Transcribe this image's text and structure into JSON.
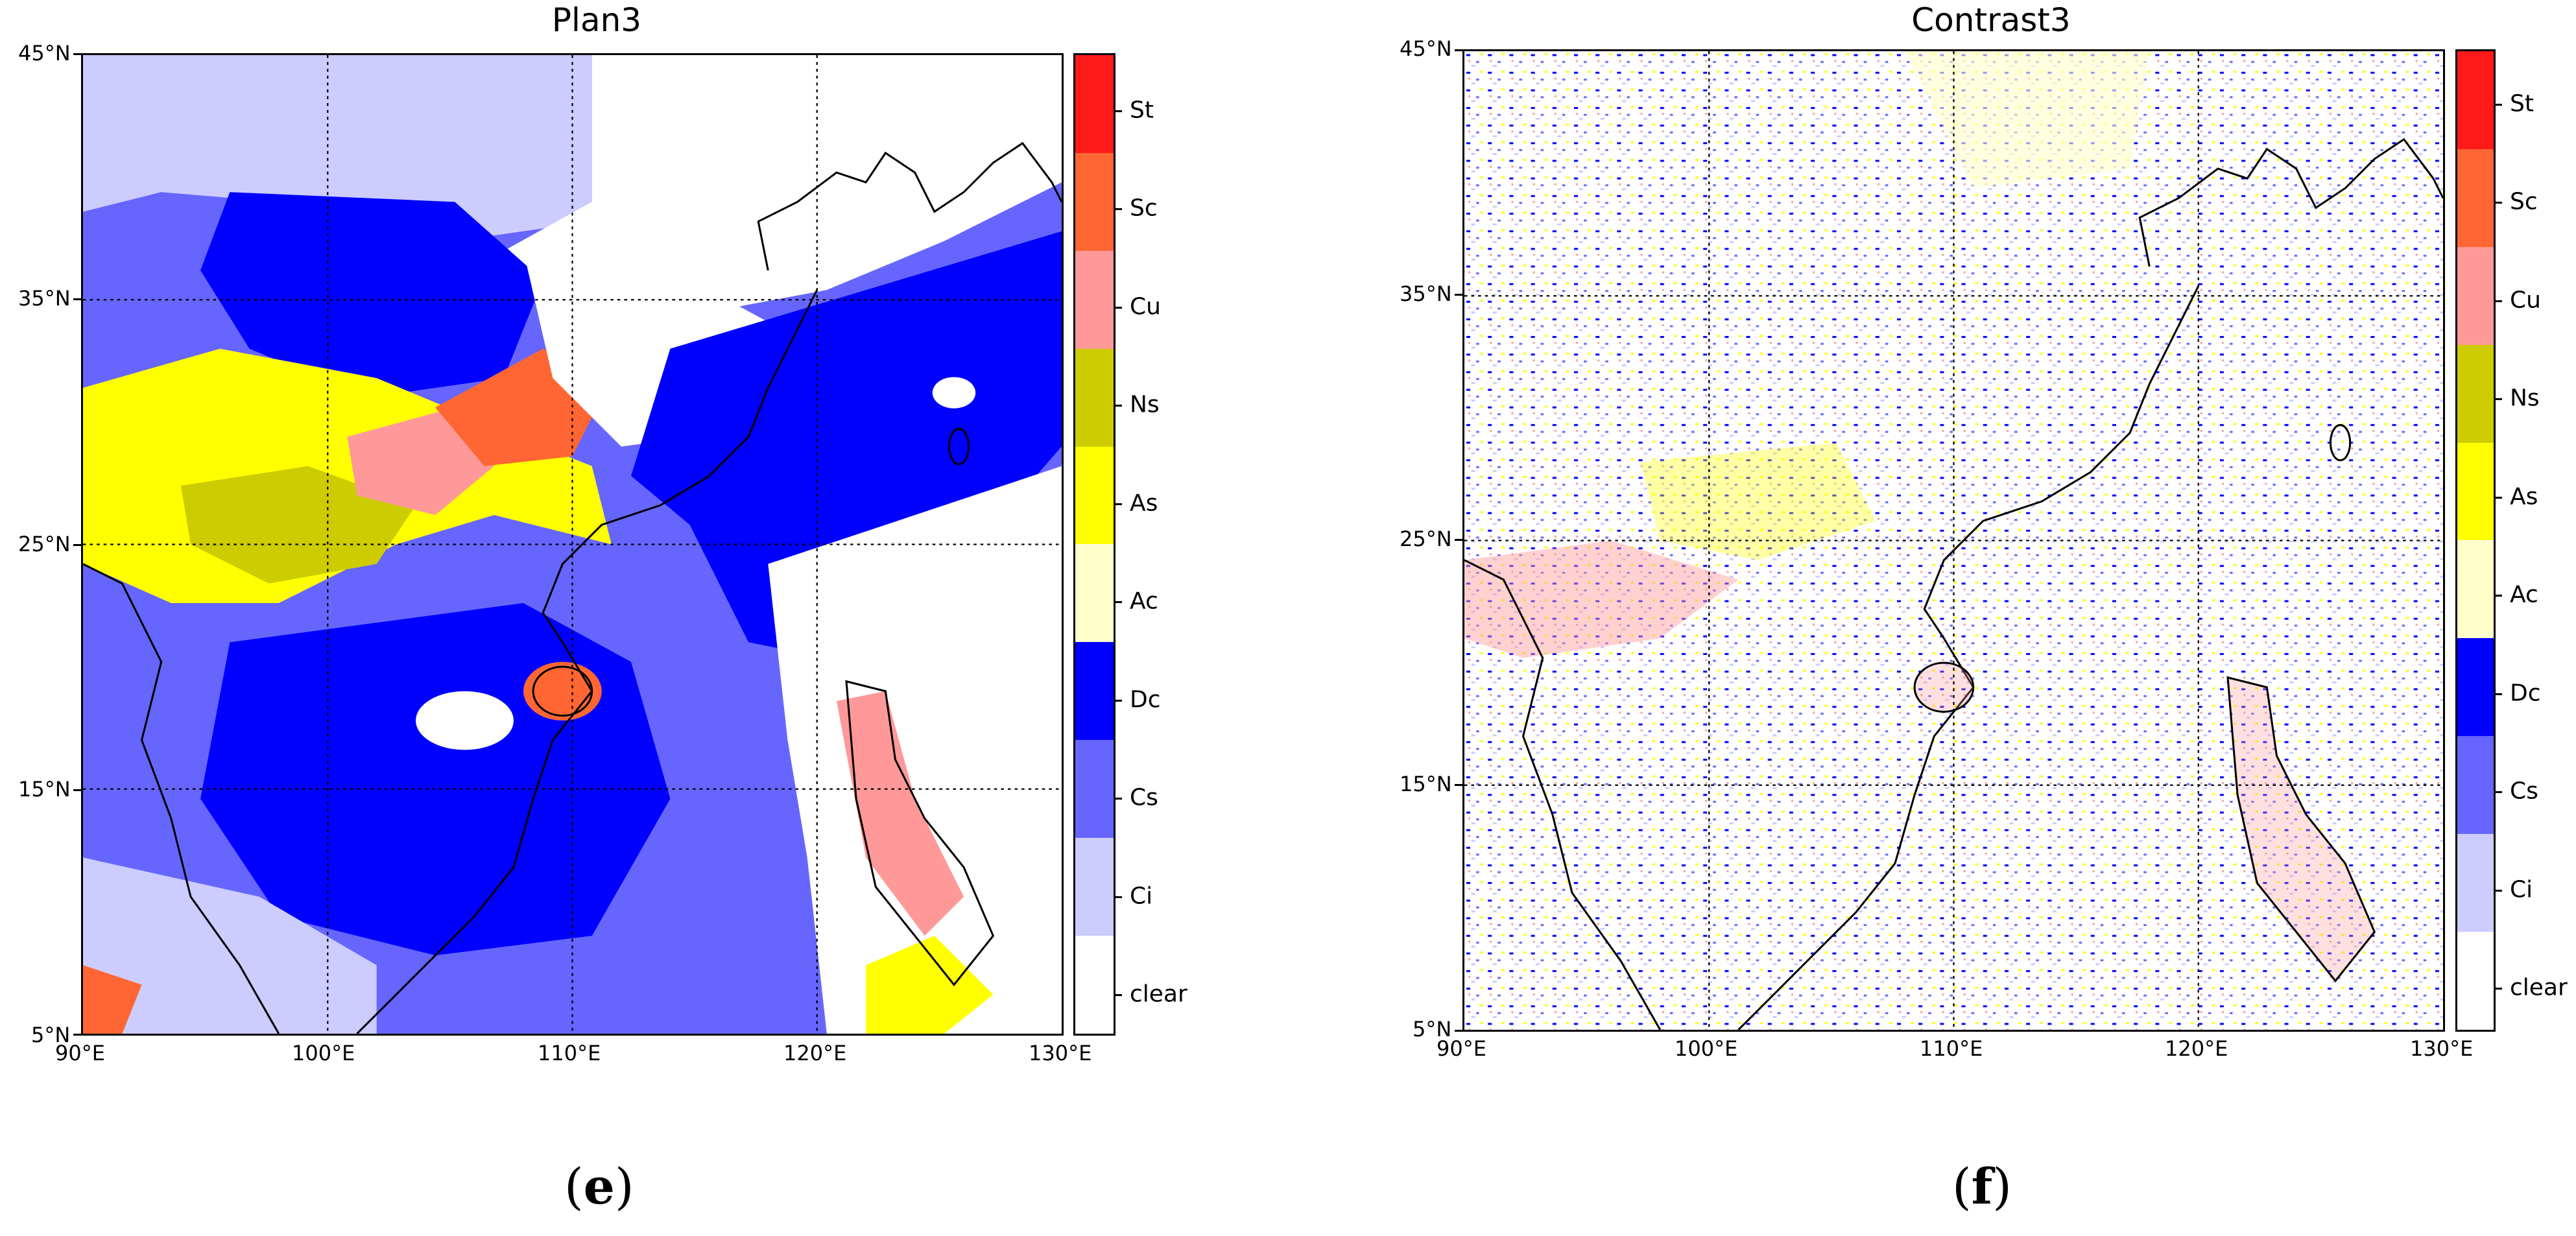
{
  "panels": [
    {
      "title": "Plan3",
      "letter": "e"
    },
    {
      "title": "Contrast3",
      "letter": "f"
    }
  ],
  "lat_labels": [
    "45°N",
    "35°N",
    "25°N",
    "15°N",
    "5°N"
  ],
  "lon_labels": [
    "90°E",
    "100°E",
    "110°E",
    "120°E",
    "130°E"
  ],
  "legend": {
    "categories": [
      "St",
      "Sc",
      "Cu",
      "Ns",
      "As",
      "Ac",
      "Dc",
      "Cs",
      "Ci",
      "clear"
    ],
    "colors": [
      "#ff1a1a",
      "#ff6633",
      "#ff9999",
      "#cccc00",
      "#ffff00",
      "#ffffcc",
      "#0000ff",
      "#6666ff",
      "#ccccff",
      "#ffffff"
    ]
  },
  "coastline_color": "#000000",
  "gridline_style": "dotted"
}
